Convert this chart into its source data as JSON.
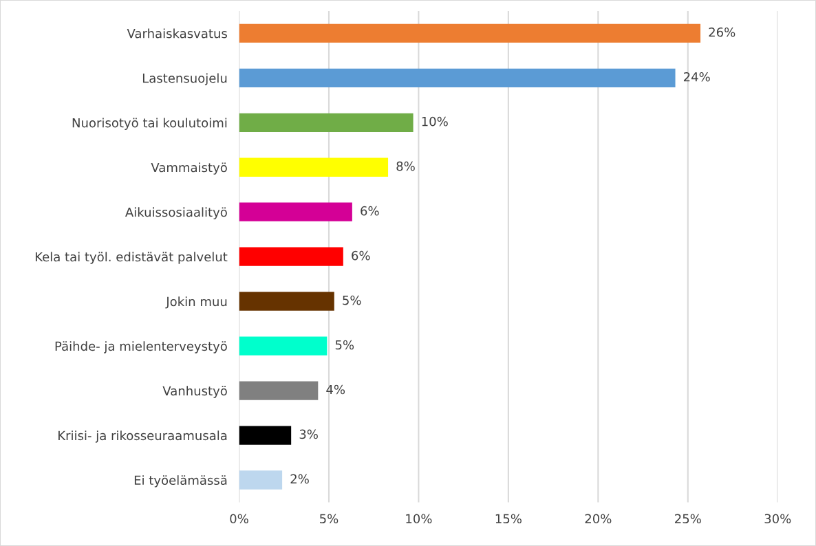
{
  "chart_data": {
    "type": "bar",
    "orientation": "horizontal",
    "categories": [
      "Varhaiskasvatus",
      "Lastensuojelu",
      "Nuorisotyö tai koulutoimi",
      "Vammaistyö",
      "Aikuissosiaalityö",
      "Kela tai työl. edistävät palvelut",
      "Jokin muu",
      "Päihde- ja mielenterveystyö",
      "Vanhustyö",
      "Kriisi- ja rikosseuraamusala",
      "Ei työelämässä"
    ],
    "values": [
      25.7,
      24.3,
      9.7,
      8.3,
      6.3,
      5.8,
      5.3,
      4.9,
      4.4,
      2.9,
      2.4
    ],
    "value_labels": [
      "26%",
      "24%",
      "10%",
      "8%",
      "6%",
      "6%",
      "5%",
      "5%",
      "4%",
      "3%",
      "2%"
    ],
    "colors": [
      "#ed7d31",
      "#5b9bd5",
      "#70ad47",
      "#ffff00",
      "#d40096",
      "#ff0000",
      "#663300",
      "#00ffcc",
      "#808080",
      "#000000",
      "#bdd7ee"
    ],
    "xlim": [
      0,
      30
    ],
    "xticks": [
      {
        "value": 0,
        "label": "0%"
      },
      {
        "value": 5,
        "label": "5%"
      },
      {
        "value": 10,
        "label": "10%"
      },
      {
        "value": 15,
        "label": "15%"
      },
      {
        "value": 20,
        "label": "20%"
      },
      {
        "value": 25,
        "label": "25%"
      },
      {
        "value": 30,
        "label": "30%"
      }
    ],
    "grid": "x",
    "legend": false
  }
}
